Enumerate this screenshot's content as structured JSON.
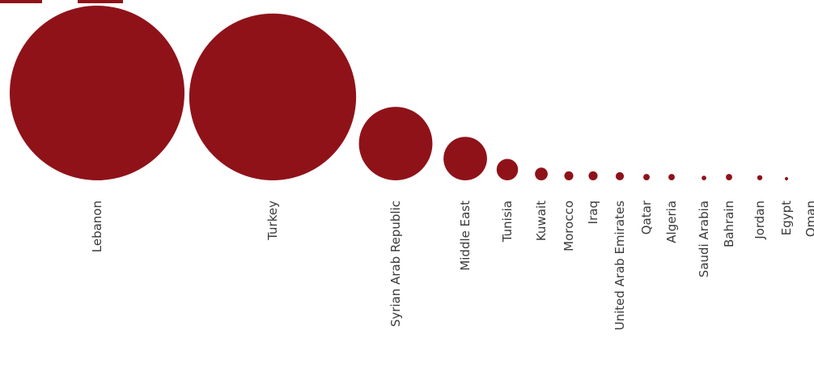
{
  "chart_data": {
    "type": "bubble",
    "bubble_color": "#8f1219",
    "label_color": "#3a3a3a",
    "categories": [
      "Lebanon",
      "Turkey",
      "Syrian Arab Republic",
      "Middle East",
      "Tunisia",
      "Kuwait",
      "Morocco",
      "Iraq",
      "United Arab Emirates",
      "Qatar",
      "Algeria",
      "Saudi Arabia",
      "Bahrain",
      "Jordan",
      "Egypt",
      "Oman"
    ],
    "values": [
      11300,
      10300,
      2000,
      700,
      170,
      60,
      30,
      30,
      25,
      15,
      15,
      8,
      15,
      10,
      1,
      0
    ],
    "legend": "none",
    "grid": false
  }
}
